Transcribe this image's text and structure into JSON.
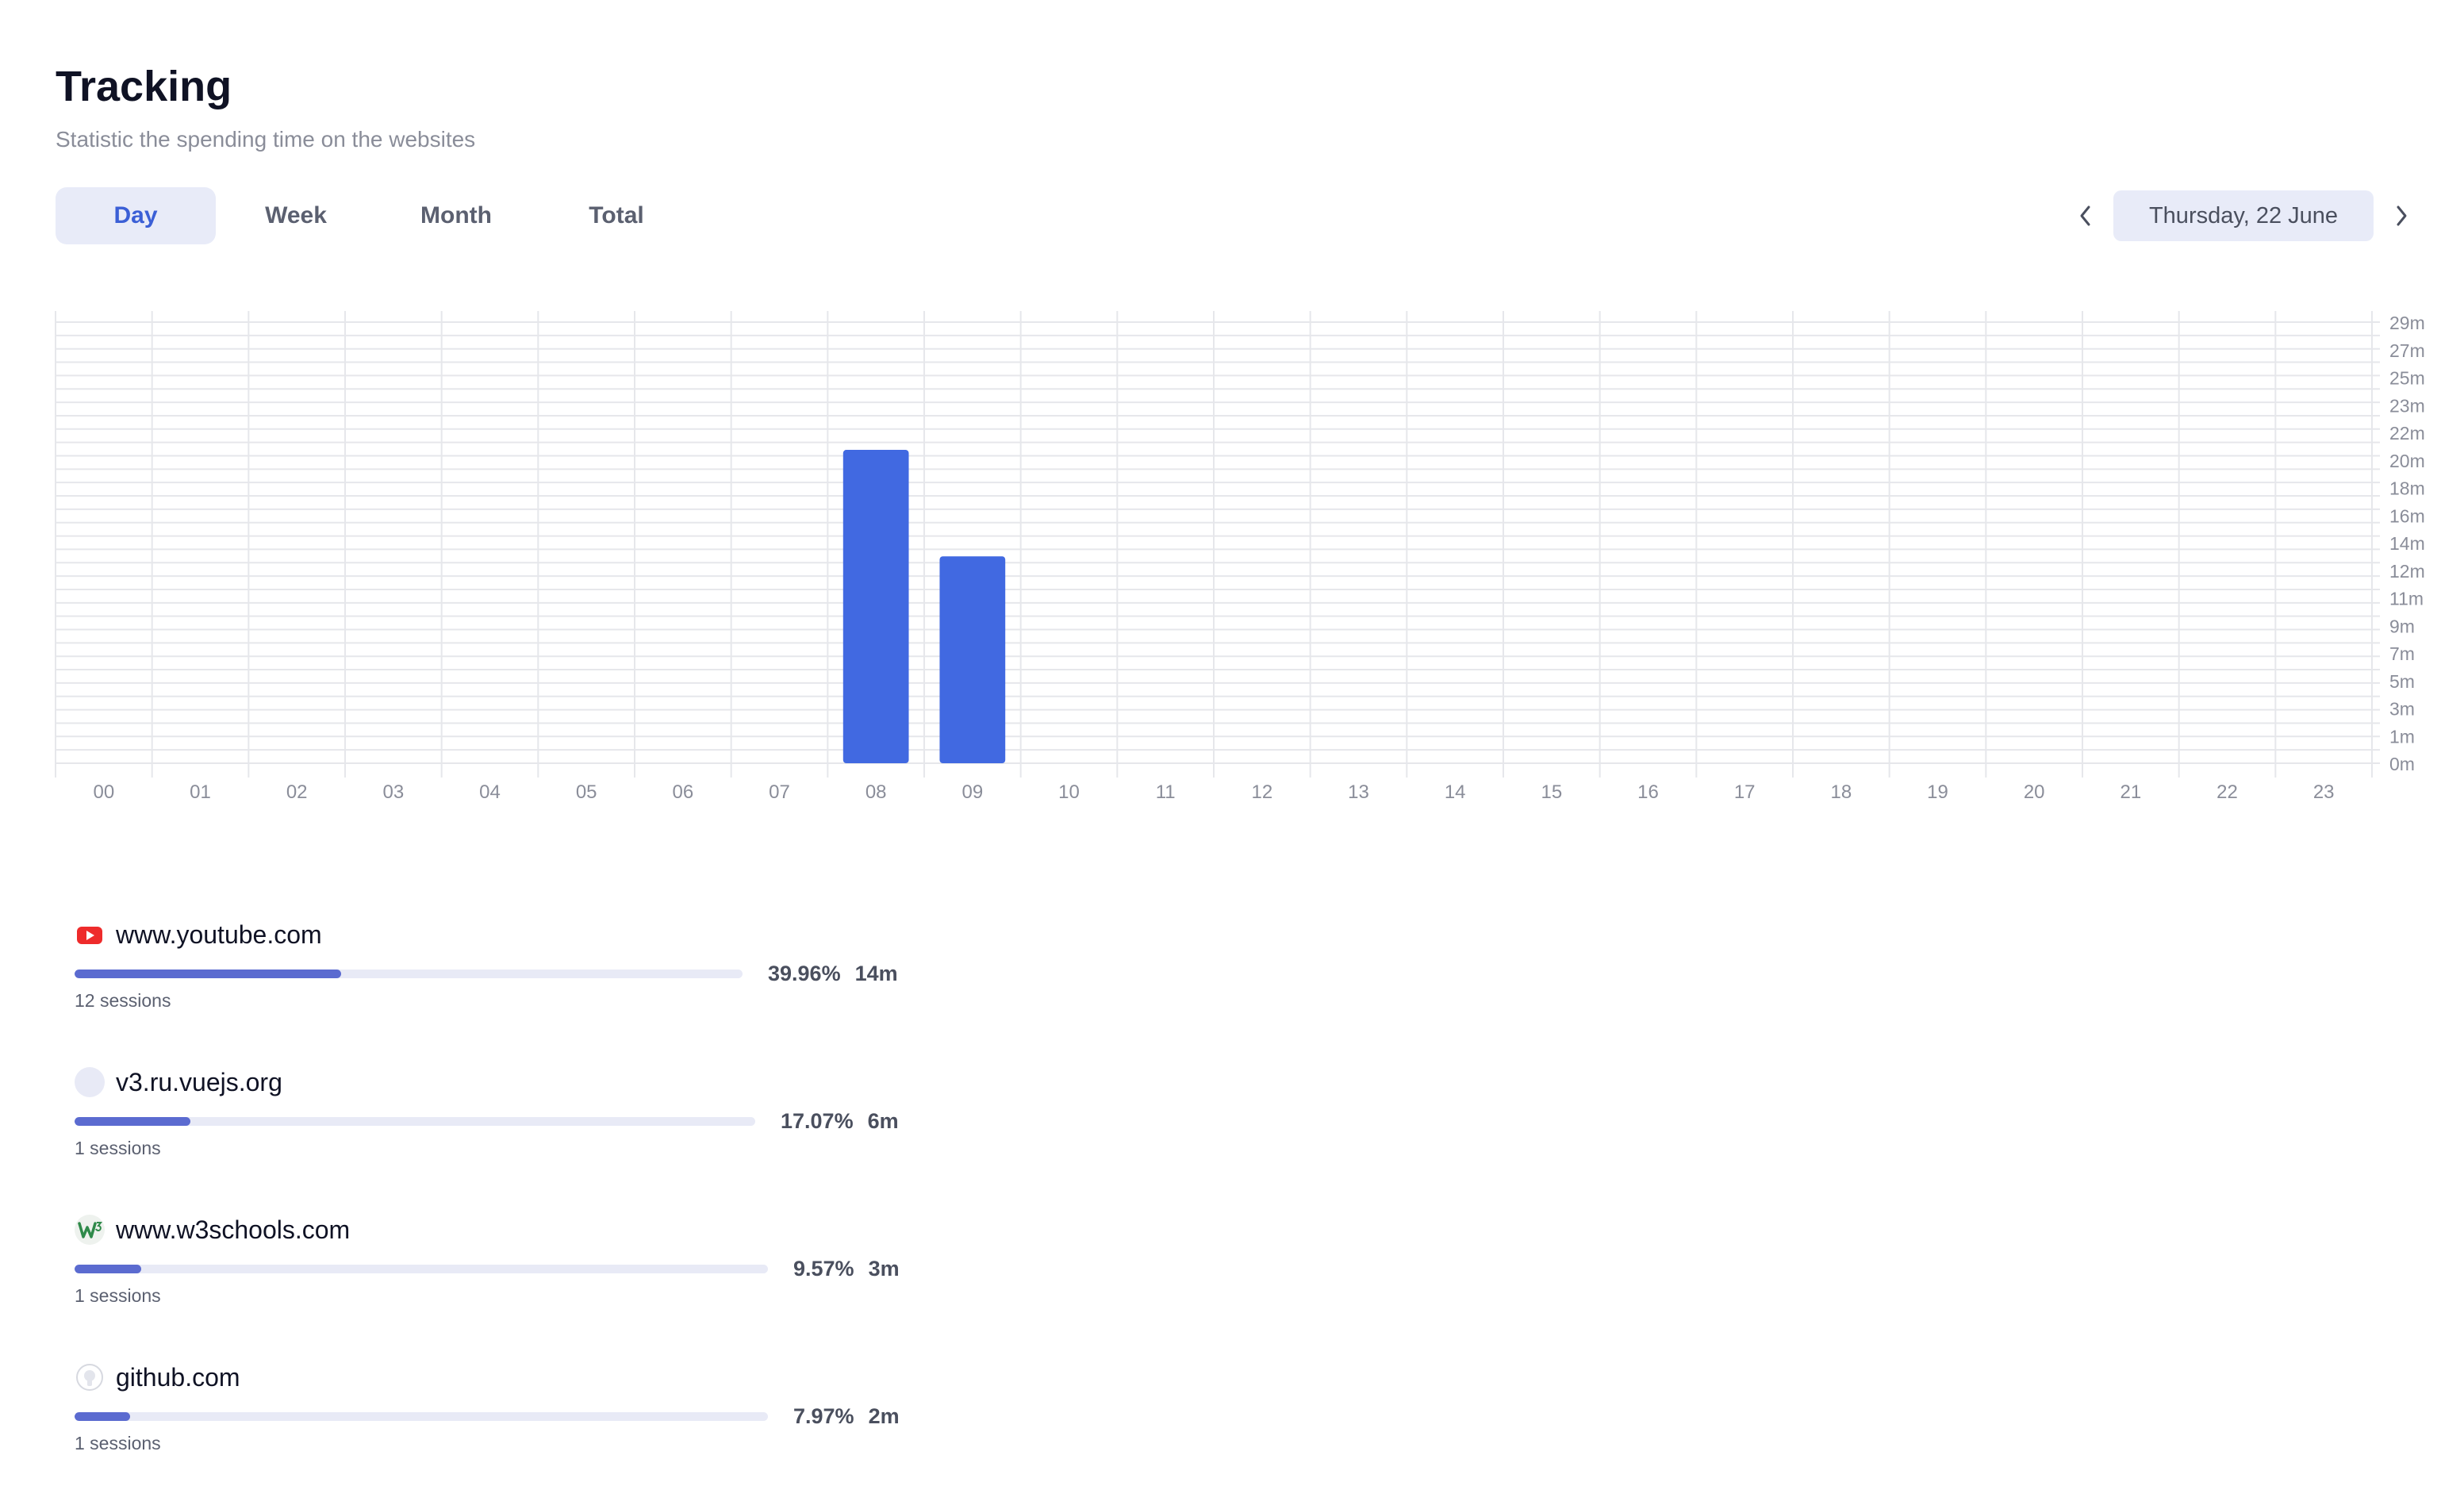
{
  "page": {
    "title": "Tracking",
    "subtitle": "Statistic the spending time on the websites"
  },
  "tabs": [
    {
      "label": "Day",
      "active": true
    },
    {
      "label": "Week",
      "active": false
    },
    {
      "label": "Month",
      "active": false
    },
    {
      "label": "Total",
      "active": false
    }
  ],
  "date_nav": {
    "date_label": "Thursday, 22 June",
    "prev_icon": "chevron-left-icon",
    "next_icon": "chevron-right-icon"
  },
  "colors": {
    "accent": "#3b5fd6",
    "bar": "#4169e1",
    "progress": "#5b6bd0",
    "tab_active_bg": "#e8ebf8"
  },
  "chart_data": {
    "type": "bar",
    "categories": [
      "00",
      "01",
      "02",
      "03",
      "04",
      "05",
      "06",
      "07",
      "08",
      "09",
      "10",
      "11",
      "12",
      "13",
      "14",
      "15",
      "16",
      "17",
      "18",
      "19",
      "20",
      "21",
      "22",
      "23"
    ],
    "values": [
      0,
      0,
      0,
      0,
      0,
      0,
      0,
      0,
      20.6,
      13.6,
      0,
      0,
      0,
      0,
      0,
      0,
      0,
      0,
      0,
      0,
      0,
      0,
      0,
      0
    ],
    "y_ticks": [
      "0m",
      "1m",
      "3m",
      "5m",
      "7m",
      "9m",
      "11m",
      "12m",
      "14m",
      "16m",
      "18m",
      "20m",
      "22m",
      "23m",
      "25m",
      "27m",
      "29m"
    ],
    "ylim": [
      0,
      29
    ],
    "y_unit": "minutes",
    "y_axis_position": "right",
    "grid": true,
    "xlabel": "",
    "ylabel": "",
    "title": ""
  },
  "sites": [
    {
      "name": "www.youtube.com",
      "icon": "youtube-icon",
      "percent": "39.96%",
      "fraction": 0.3996,
      "duration": "14m",
      "sessions": "12 sessions"
    },
    {
      "name": "v3.ru.vuejs.org",
      "icon": "blank-favicon-icon",
      "percent": "17.07%",
      "fraction": 0.1707,
      "duration": "6m",
      "sessions": "1 sessions"
    },
    {
      "name": "www.w3schools.com",
      "icon": "w3schools-icon",
      "percent": "9.57%",
      "fraction": 0.0957,
      "duration": "3m",
      "sessions": "1 sessions"
    },
    {
      "name": "github.com",
      "icon": "github-icon",
      "percent": "7.97%",
      "fraction": 0.0797,
      "duration": "2m",
      "sessions": "1 sessions"
    }
  ]
}
